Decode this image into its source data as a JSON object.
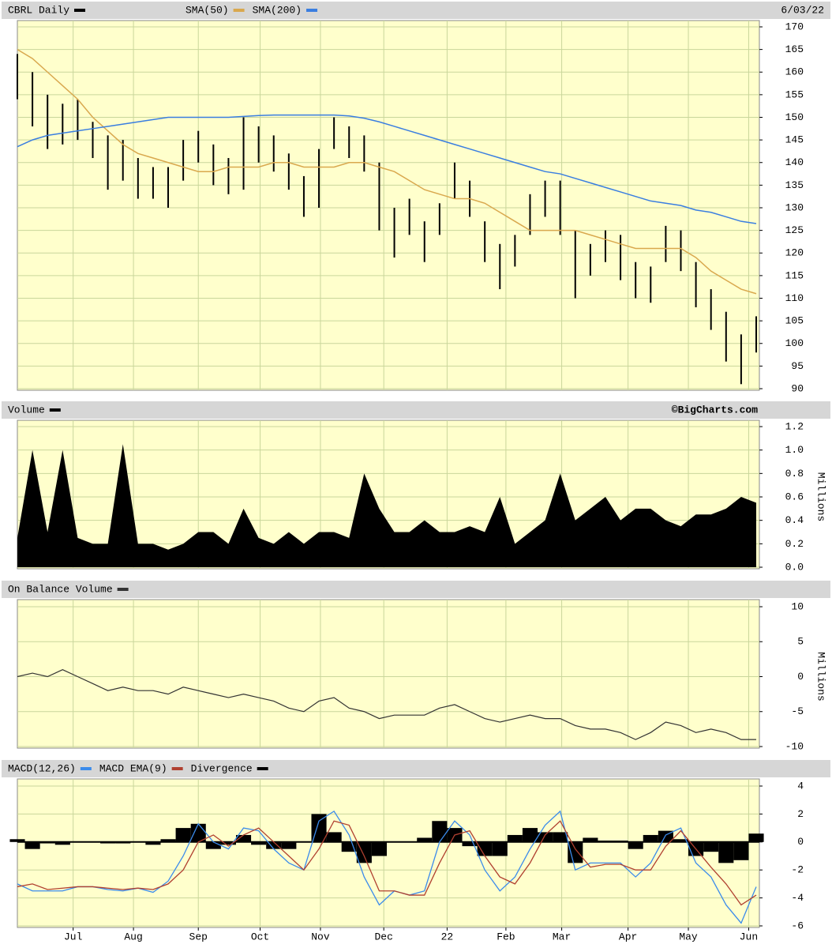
{
  "chart_data": [
    {
      "type": "range",
      "title": "CBRL Daily",
      "color": "#000000",
      "date": "6/03/22",
      "high": [
        164,
        160,
        155,
        153,
        154,
        149,
        146,
        145,
        141,
        139,
        139,
        145,
        147,
        144,
        141,
        150,
        148,
        146,
        142,
        137,
        143,
        150,
        148,
        146,
        140,
        130,
        132,
        127,
        131,
        140,
        136,
        127,
        122,
        124,
        133,
        136,
        136,
        125,
        122,
        125,
        124,
        118,
        117,
        126,
        125,
        118,
        112,
        107,
        102,
        106
      ],
      "low": [
        154,
        148,
        143,
        144,
        145,
        141,
        134,
        136,
        132,
        132,
        130,
        136,
        140,
        135,
        133,
        134,
        140,
        138,
        134,
        128,
        130,
        143,
        141,
        138,
        125,
        119,
        124,
        118,
        124,
        132,
        128,
        118,
        112,
        117,
        124,
        128,
        124,
        110,
        115,
        118,
        114,
        110,
        109,
        118,
        116,
        108,
        103,
        96,
        91,
        98
      ],
      "series": [
        {
          "name": "SMA(50)",
          "color": "#d9a84e",
          "values": [
            165,
            163,
            160,
            157,
            154,
            150,
            147,
            144,
            142,
            141,
            140,
            139,
            138,
            138,
            139,
            139,
            139,
            140,
            140,
            139,
            139,
            139,
            140,
            140,
            139,
            138,
            136,
            134,
            133,
            132,
            132,
            131,
            129,
            127,
            125,
            125,
            125,
            125,
            124,
            123,
            122,
            121,
            121,
            121,
            121,
            119,
            116,
            114,
            112,
            111
          ]
        },
        {
          "name": "SMA(200)",
          "color": "#3a7ee0",
          "values": [
            143.5,
            145,
            146,
            146.5,
            147,
            147.5,
            148,
            148.5,
            149,
            149.5,
            150,
            150,
            150,
            150,
            150,
            150.2,
            150.4,
            150.5,
            150.5,
            150.5,
            150.5,
            150.5,
            150.3,
            149.8,
            149,
            148,
            147,
            146,
            145,
            144,
            143,
            142,
            141,
            140,
            139,
            138,
            137.5,
            136.5,
            135.5,
            134.5,
            133.5,
            132.5,
            131.5,
            131,
            130.5,
            129.5,
            129,
            128,
            127,
            126.5
          ]
        }
      ],
      "ylim": [
        90,
        170
      ],
      "yticks": [
        90,
        95,
        100,
        105,
        110,
        115,
        120,
        125,
        130,
        135,
        140,
        145,
        150,
        155,
        160,
        165,
        170
      ],
      "xlim": [
        0,
        49
      ]
    },
    {
      "type": "area",
      "title": "Volume",
      "color": "#000000",
      "note": "©BigCharts.com",
      "ylabel": "Millions",
      "values": [
        0.25,
        1.0,
        0.3,
        1.0,
        0.25,
        0.2,
        0.2,
        1.05,
        0.2,
        0.2,
        0.15,
        0.2,
        0.3,
        0.3,
        0.2,
        0.5,
        0.25,
        0.2,
        0.3,
        0.2,
        0.3,
        0.3,
        0.25,
        0.8,
        0.5,
        0.3,
        0.3,
        0.4,
        0.3,
        0.3,
        0.35,
        0.3,
        0.6,
        0.2,
        0.3,
        0.4,
        0.8,
        0.4,
        0.5,
        0.6,
        0.4,
        0.5,
        0.5,
        0.4,
        0.35,
        0.45,
        0.45,
        0.5,
        0.6,
        0.55
      ],
      "ylim": [
        0,
        1.2
      ],
      "yticks": [
        {
          "value": 0,
          "label": "0.0"
        },
        0.2,
        0.4,
        0.6,
        0.8,
        {
          "value": 1,
          "label": "1.0"
        },
        1.2
      ],
      "xlim": [
        0,
        49
      ]
    },
    {
      "type": "line",
      "title": "On Balance Volume",
      "color": "#333333",
      "ylabel": "Millions",
      "values": [
        0,
        0.5,
        0,
        1,
        0,
        -1,
        -2,
        -1.5,
        -2,
        -2,
        -2.5,
        -1.5,
        -2,
        -2.5,
        -3,
        -2.5,
        -3,
        -3.5,
        -4.5,
        -5,
        -3.5,
        -3,
        -4.5,
        -5,
        -6,
        -5.5,
        -5.5,
        -5.5,
        -4.5,
        -4,
        -5,
        -6,
        -6.5,
        -6,
        -5.5,
        -6,
        -6,
        -7,
        -7.5,
        -7.5,
        -8,
        -9,
        -8,
        -6.5,
        -7,
        -8,
        -7.5,
        -8,
        -9,
        -9
      ],
      "ylim": [
        -10,
        10
      ],
      "yticks": [
        -10,
        -5,
        0,
        5,
        10
      ],
      "xlim": [
        0,
        49
      ]
    },
    {
      "type": "macd",
      "series": [
        {
          "name": "MACD(12,26)",
          "color": "#3b8beb",
          "values": [
            -3,
            -3.5,
            -3.5,
            -3.5,
            -3.2,
            -3.2,
            -3.4,
            -3.5,
            -3.3,
            -3.6,
            -2.8,
            -1,
            1.3,
            0,
            -0.5,
            1,
            0.8,
            -0.5,
            -1.5,
            -2,
            1.5,
            2.2,
            0.5,
            -2.5,
            -4.5,
            -3.5,
            -3.8,
            -3.5,
            0,
            1.5,
            0.5,
            -2,
            -3.5,
            -2.5,
            -0.5,
            1.2,
            2.2,
            -2,
            -1.5,
            -1.5,
            -1.5,
            -2.5,
            -1.5,
            0.5,
            1,
            -1.5,
            -2.5,
            -4.5,
            -5.8,
            -3.2
          ]
        },
        {
          "name": "MACD EMA(9)",
          "color": "#b04030",
          "values": [
            -3.2,
            -3,
            -3.4,
            -3.3,
            -3.2,
            -3.2,
            -3.3,
            -3.4,
            -3.3,
            -3.4,
            -3,
            -2,
            0,
            0.5,
            -0.3,
            0.5,
            1,
            0,
            -1,
            -2,
            -0.5,
            1.5,
            1.2,
            -1,
            -3.5,
            -3.5,
            -3.8,
            -3.8,
            -1.5,
            0.5,
            0.8,
            -1,
            -2.5,
            -3,
            -1.5,
            0.5,
            1.5,
            -0.5,
            -1.8,
            -1.6,
            -1.6,
            -2,
            -2,
            -0.3,
            0.8,
            -0.5,
            -1.8,
            -3,
            -4.5,
            -3.8
          ]
        },
        {
          "name": "Divergence",
          "color": "#000000",
          "values": [
            0.2,
            -0.5,
            -0.1,
            -0.2,
            0,
            0,
            -0.1,
            -0.1,
            0,
            -0.2,
            0.2,
            1,
            1.3,
            -0.5,
            -0.2,
            0.5,
            -0.2,
            -0.5,
            -0.5,
            0,
            2,
            0.7,
            -0.7,
            -1.5,
            -1,
            0,
            0,
            0.3,
            1.5,
            1,
            -0.3,
            -1,
            -1,
            0.5,
            1,
            0.7,
            0.7,
            -1.5,
            0.3,
            0.1,
            0.1,
            -0.5,
            0.5,
            0.8,
            0.2,
            -1,
            -0.7,
            -1.5,
            -1.3,
            0.6
          ]
        }
      ],
      "ylim": [
        -6,
        4
      ],
      "yticks": [
        -6,
        -4,
        -2,
        0,
        2,
        4
      ],
      "xlim": [
        0,
        49
      ],
      "xticks": [
        {
          "value": 3.7,
          "label": "Jul"
        },
        {
          "value": 7.7,
          "label": "Aug"
        },
        {
          "value": 12.0,
          "label": "Sep"
        },
        {
          "value": 16.1,
          "label": "Oct"
        },
        {
          "value": 20.1,
          "label": "Nov"
        },
        {
          "value": 24.3,
          "label": "Dec"
        },
        {
          "value": 28.5,
          "label": "22"
        },
        {
          "value": 32.4,
          "label": "Feb"
        },
        {
          "value": 36.1,
          "label": "Mar"
        },
        {
          "value": 40.5,
          "label": "Apr"
        },
        {
          "value": 44.5,
          "label": "May"
        },
        {
          "value": 48.5,
          "label": "Jun"
        }
      ]
    }
  ]
}
